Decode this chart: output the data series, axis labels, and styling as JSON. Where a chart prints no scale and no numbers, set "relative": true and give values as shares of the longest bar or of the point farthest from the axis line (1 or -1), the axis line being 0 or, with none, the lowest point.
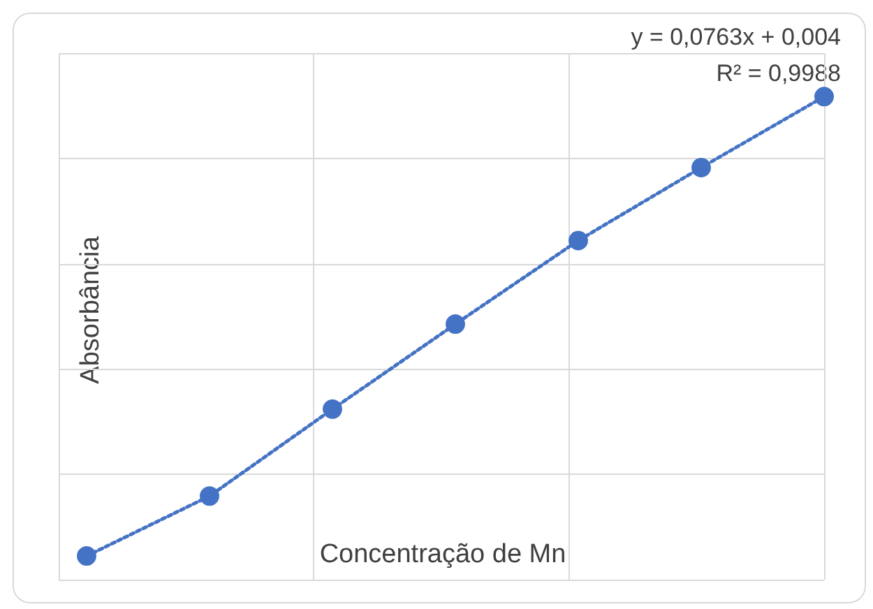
{
  "chart_data": {
    "type": "line",
    "relative": true,
    "xlabel": "Concentração de Mn",
    "ylabel": "Absorbância",
    "grid": true,
    "marker": "circle",
    "line_style": "dotted",
    "annotations": [
      "y = 0,0763x + 0,004",
      "R² = 0,9988"
    ],
    "categories": [
      null,
      null,
      null,
      null,
      null,
      null,
      null
    ],
    "series": [
      {
        "color": "#4472c4",
        "values": [
          0.049,
          0.173,
          0.353,
          0.529,
          0.702,
          0.853,
          1
        ]
      }
    ]
  }
}
